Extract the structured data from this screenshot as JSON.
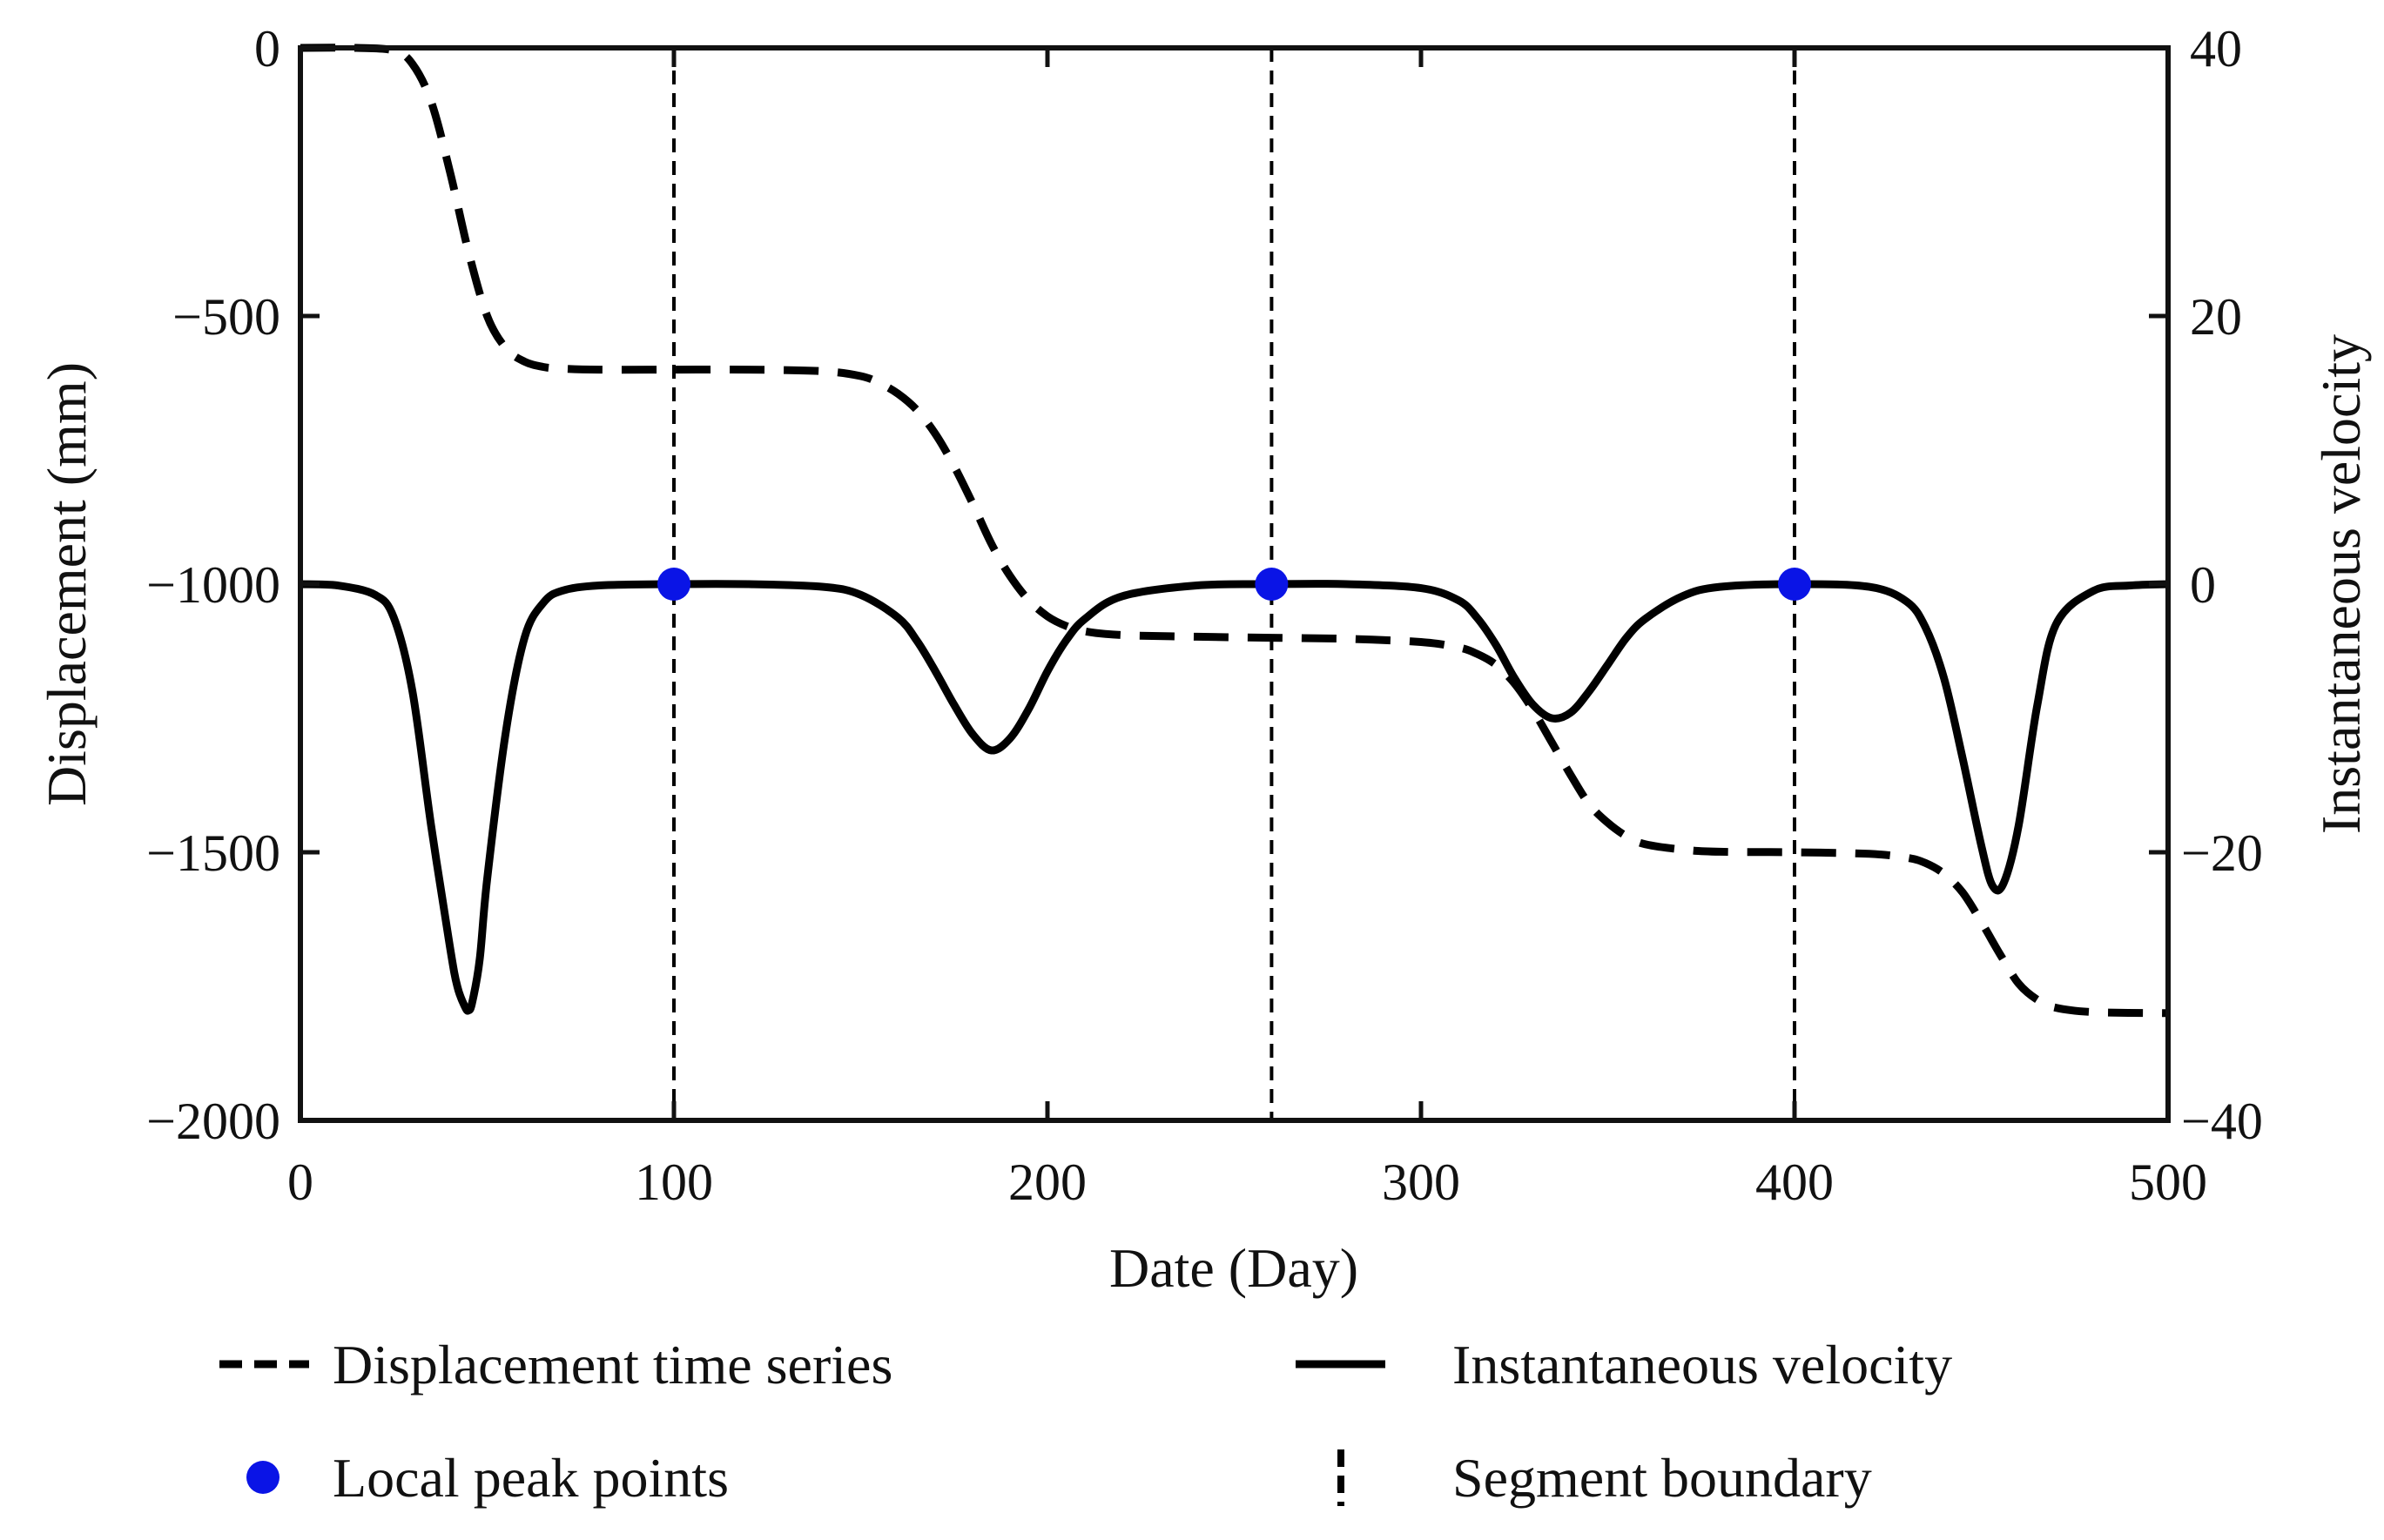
{
  "chart_data": {
    "type": "line",
    "xlabel": "Date (Day)",
    "ylabel_left": "Displacement (mm)",
    "ylabel_right": "Instantaneous velocity",
    "xlim": [
      0,
      500
    ],
    "ylim_left": [
      -2000,
      0
    ],
    "ylim_right": [
      -40,
      40
    ],
    "x_ticks": [
      "0",
      "100",
      "200",
      "300",
      "400",
      "500"
    ],
    "y_left_ticks": [
      "0",
      "−500",
      "−1000",
      "−1500",
      "−2000"
    ],
    "y_right_ticks": [
      "40",
      "20",
      "0",
      "−20",
      "−40"
    ],
    "series": [
      {
        "name": "Displacement time series",
        "axis": "left",
        "style": "dashed",
        "color": "#000000",
        "x": [
          0,
          15,
          25,
          30,
          35,
          40,
          45,
          50,
          55,
          60,
          65,
          70,
          80,
          100,
          120,
          140,
          150,
          155,
          160,
          165,
          170,
          175,
          180,
          185,
          190,
          195,
          200,
          205,
          210,
          220,
          240,
          260,
          280,
          300,
          310,
          315,
          320,
          325,
          330,
          335,
          340,
          345,
          350,
          355,
          360,
          370,
          380,
          400,
          420,
          430,
          435,
          440,
          445,
          450,
          455,
          460,
          465,
          470,
          480,
          500
        ],
        "y": [
          0,
          0,
          -5,
          -30,
          -100,
          -230,
          -380,
          -500,
          -560,
          -585,
          -595,
          -598,
          -600,
          -600,
          -600,
          -603,
          -612,
          -625,
          -645,
          -675,
          -720,
          -780,
          -850,
          -925,
          -985,
          -1030,
          -1060,
          -1078,
          -1088,
          -1095,
          -1098,
          -1100,
          -1102,
          -1108,
          -1118,
          -1130,
          -1150,
          -1185,
          -1235,
          -1295,
          -1355,
          -1410,
          -1445,
          -1470,
          -1485,
          -1495,
          -1499,
          -1500,
          -1503,
          -1510,
          -1520,
          -1540,
          -1575,
          -1630,
          -1690,
          -1745,
          -1775,
          -1790,
          -1798,
          -1800
        ]
      },
      {
        "name": "Instantaneous velocity",
        "axis": "right",
        "style": "solid",
        "color": "#000000",
        "x": [
          0,
          10,
          20,
          25,
          30,
          35,
          40,
          42,
          44,
          45,
          46,
          48,
          50,
          55,
          60,
          65,
          70,
          80,
          100,
          120,
          140,
          150,
          160,
          165,
          170,
          175,
          180,
          185,
          190,
          195,
          200,
          205,
          210,
          220,
          240,
          260,
          280,
          300,
          310,
          315,
          320,
          325,
          330,
          335,
          340,
          345,
          350,
          355,
          360,
          370,
          380,
          400,
          420,
          430,
          435,
          440,
          445,
          450,
          453,
          456,
          460,
          465,
          470,
          480,
          490,
          500
        ],
        "y": [
          0,
          -0.1,
          -0.8,
          -2.5,
          -8,
          -18,
          -27,
          -30,
          -31.5,
          -31.8,
          -31.2,
          -28,
          -22,
          -11,
          -4,
          -1.4,
          -0.5,
          -0.1,
          0,
          0,
          -0.2,
          -0.8,
          -2.5,
          -4.2,
          -6.5,
          -9,
          -11.2,
          -12.4,
          -11.5,
          -9.3,
          -6.5,
          -4.2,
          -2.6,
          -0.9,
          -0.1,
          0,
          0,
          -0.3,
          -1.2,
          -2.5,
          -4.5,
          -7,
          -9,
          -10,
          -9.6,
          -8,
          -6,
          -4,
          -2.6,
          -0.9,
          -0.2,
          0,
          -0.2,
          -1.3,
          -3.2,
          -7,
          -13,
          -19.5,
          -22.5,
          -22.3,
          -18,
          -9,
          -3,
          -0.5,
          -0.1,
          0
        ]
      },
      {
        "name": "Local peak points",
        "axis": "right",
        "style": "markers",
        "color": "#0a14e6",
        "x": [
          100,
          260,
          400
        ],
        "y": [
          0,
          0,
          0
        ]
      },
      {
        "name": "Segment boundary",
        "style": "vertical-dashed",
        "color": "#000000",
        "x": [
          100,
          260,
          400
        ]
      }
    ],
    "legend": {
      "placement": "bottom",
      "entries": [
        {
          "label": "Displacement time series",
          "symbol": "dashed-line"
        },
        {
          "label": "Instantaneous velocity",
          "symbol": "solid-line"
        },
        {
          "label": "Local peak points",
          "symbol": "blue-dot"
        },
        {
          "label": "Segment boundary",
          "symbol": "vertical-dash"
        }
      ]
    },
    "grid": false
  }
}
